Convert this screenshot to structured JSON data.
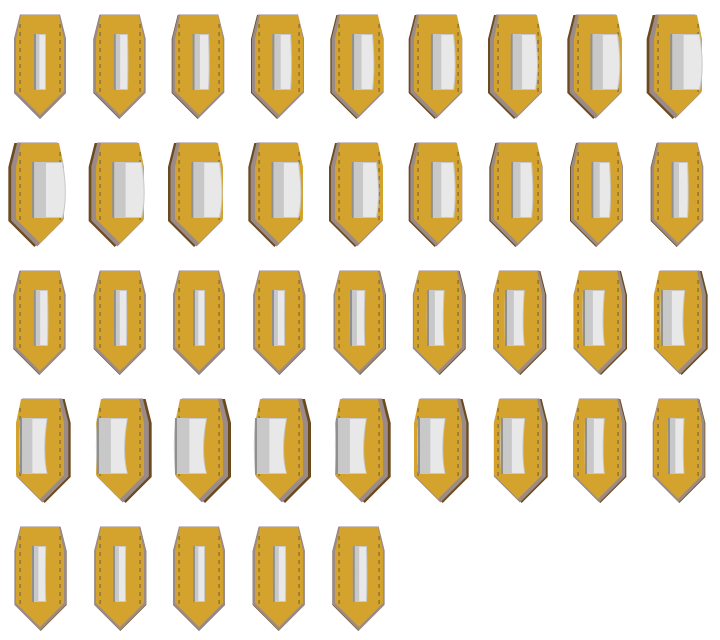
{
  "sprite_sheet": {
    "frame_count": 41,
    "columns": 9,
    "rows": 5,
    "colors": {
      "shield_gold": "#d4a32e",
      "shield_rim_dark": "#6b4a1e",
      "shield_rim_light": "#9a8a88",
      "rivet": "#6e5a3a",
      "handle_light": "#e8e8e8",
      "handle_mid": "#c8c8c8",
      "handle_dark": "#8f8f8f",
      "background": "#ffffff"
    },
    "frames": [
      {
        "rotation": 0
      },
      {
        "rotation": 4
      },
      {
        "rotation": 8
      },
      {
        "rotation": 12
      },
      {
        "rotation": 16
      },
      {
        "rotation": 20
      },
      {
        "rotation": 24
      },
      {
        "rotation": 28
      },
      {
        "rotation": 32
      },
      {
        "rotation": 34
      },
      {
        "rotation": 32
      },
      {
        "rotation": 30
      },
      {
        "rotation": 28
      },
      {
        "rotation": 24
      },
      {
        "rotation": 20
      },
      {
        "rotation": 16
      },
      {
        "rotation": 12
      },
      {
        "rotation": 8
      },
      {
        "rotation": 4
      },
      {
        "rotation": 2
      },
      {
        "rotation": 0
      },
      {
        "rotation": -2
      },
      {
        "rotation": -6
      },
      {
        "rotation": -10
      },
      {
        "rotation": -14
      },
      {
        "rotation": -18
      },
      {
        "rotation": -22
      },
      {
        "rotation": -28
      },
      {
        "rotation": -34
      },
      {
        "rotation": -36
      },
      {
        "rotation": -36
      },
      {
        "rotation": -34
      },
      {
        "rotation": -28
      },
      {
        "rotation": -22
      },
      {
        "rotation": -14
      },
      {
        "rotation": -8
      },
      {
        "rotation": -4
      },
      {
        "rotation": -2
      },
      {
        "rotation": 0
      },
      {
        "rotation": 2
      },
      {
        "rotation": 4
      }
    ]
  }
}
